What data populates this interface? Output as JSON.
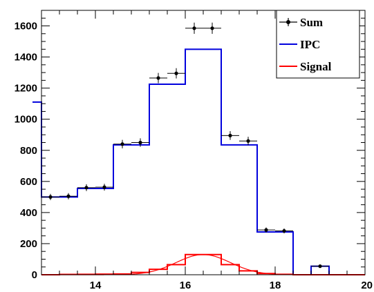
{
  "chart_data": {
    "type": "histogram",
    "title": "",
    "xlabel": "",
    "ylabel": "",
    "xlim": [
      12.8,
      20
    ],
    "ylim": [
      0,
      1700
    ],
    "xticks": [
      14,
      16,
      18,
      20
    ],
    "yticks": [
      0,
      200,
      400,
      600,
      800,
      1000,
      1200,
      1400,
      1600
    ],
    "grid": false,
    "legend_position": "top-right",
    "legend": [
      {
        "label": "Sum",
        "style": "black markers with error bars"
      },
      {
        "label": "IPC",
        "style": "blue line"
      },
      {
        "label": "Signal",
        "style": "red line"
      }
    ],
    "series": [
      {
        "name": "IPC",
        "kind": "step-histogram",
        "color": "#0000dd",
        "bins": [
          {
            "x0": 12.6,
            "x1": 12.8,
            "y": 1110
          },
          {
            "x0": 12.8,
            "x1": 13.6,
            "y": 500
          },
          {
            "x0": 13.6,
            "x1": 14.4,
            "y": 555
          },
          {
            "x0": 14.4,
            "x1": 15.2,
            "y": 835
          },
          {
            "x0": 15.2,
            "x1": 16.0,
            "y": 1225
          },
          {
            "x0": 16.0,
            "x1": 16.8,
            "y": 1450
          },
          {
            "x0": 16.8,
            "x1": 17.6,
            "y": 835
          },
          {
            "x0": 17.6,
            "x1": 18.4,
            "y": 275
          },
          {
            "x0": 18.4,
            "x1": 18.8,
            "y": 0
          },
          {
            "x0": 18.8,
            "x1": 19.2,
            "y": 55
          },
          {
            "x0": 19.2,
            "x1": 20.0,
            "y": 0
          }
        ]
      },
      {
        "name": "Signal",
        "kind": "step-histogram",
        "color": "#ff0000",
        "bins": [
          {
            "x0": 12.8,
            "x1": 13.2,
            "y": 0
          },
          {
            "x0": 13.2,
            "x1": 13.6,
            "y": 2
          },
          {
            "x0": 13.6,
            "x1": 14.0,
            "y": 3
          },
          {
            "x0": 14.0,
            "x1": 14.4,
            "y": 4
          },
          {
            "x0": 14.4,
            "x1": 14.8,
            "y": 5
          },
          {
            "x0": 14.8,
            "x1": 15.2,
            "y": 15
          },
          {
            "x0": 15.2,
            "x1": 15.6,
            "y": 35
          },
          {
            "x0": 15.6,
            "x1": 16.0,
            "y": 65
          },
          {
            "x0": 16.0,
            "x1": 16.8,
            "y": 130
          },
          {
            "x0": 16.8,
            "x1": 17.2,
            "y": 65
          },
          {
            "x0": 17.2,
            "x1": 17.6,
            "y": 25
          },
          {
            "x0": 17.6,
            "x1": 18.0,
            "y": 8
          },
          {
            "x0": 18.0,
            "x1": 18.4,
            "y": 3
          },
          {
            "x0": 18.4,
            "x1": 20.0,
            "y": 0
          }
        ]
      },
      {
        "name": "Signal fit",
        "kind": "gaussian-curve",
        "color": "#ff0000",
        "amplitude": 130,
        "mean": 16.4,
        "sigma": 0.6
      },
      {
        "name": "Sum",
        "kind": "points-with-errors",
        "color": "#000000",
        "x_halfwidth": 0.2,
        "points": [
          {
            "x": 13.0,
            "y": 500,
            "err": 20
          },
          {
            "x": 13.4,
            "y": 505,
            "err": 20
          },
          {
            "x": 13.8,
            "y": 560,
            "err": 22
          },
          {
            "x": 14.2,
            "y": 563,
            "err": 22
          },
          {
            "x": 14.6,
            "y": 840,
            "err": 27
          },
          {
            "x": 15.0,
            "y": 850,
            "err": 27
          },
          {
            "x": 15.4,
            "y": 1265,
            "err": 33
          },
          {
            "x": 15.8,
            "y": 1295,
            "err": 33
          },
          {
            "x": 16.2,
            "y": 1585,
            "err": 36
          },
          {
            "x": 16.6,
            "y": 1585,
            "err": 36
          },
          {
            "x": 17.0,
            "y": 895,
            "err": 28
          },
          {
            "x": 17.4,
            "y": 860,
            "err": 27
          },
          {
            "x": 17.8,
            "y": 288,
            "err": 16
          },
          {
            "x": 18.2,
            "y": 282,
            "err": 16
          },
          {
            "x": 19.0,
            "y": 55,
            "err": 8
          }
        ]
      }
    ]
  }
}
